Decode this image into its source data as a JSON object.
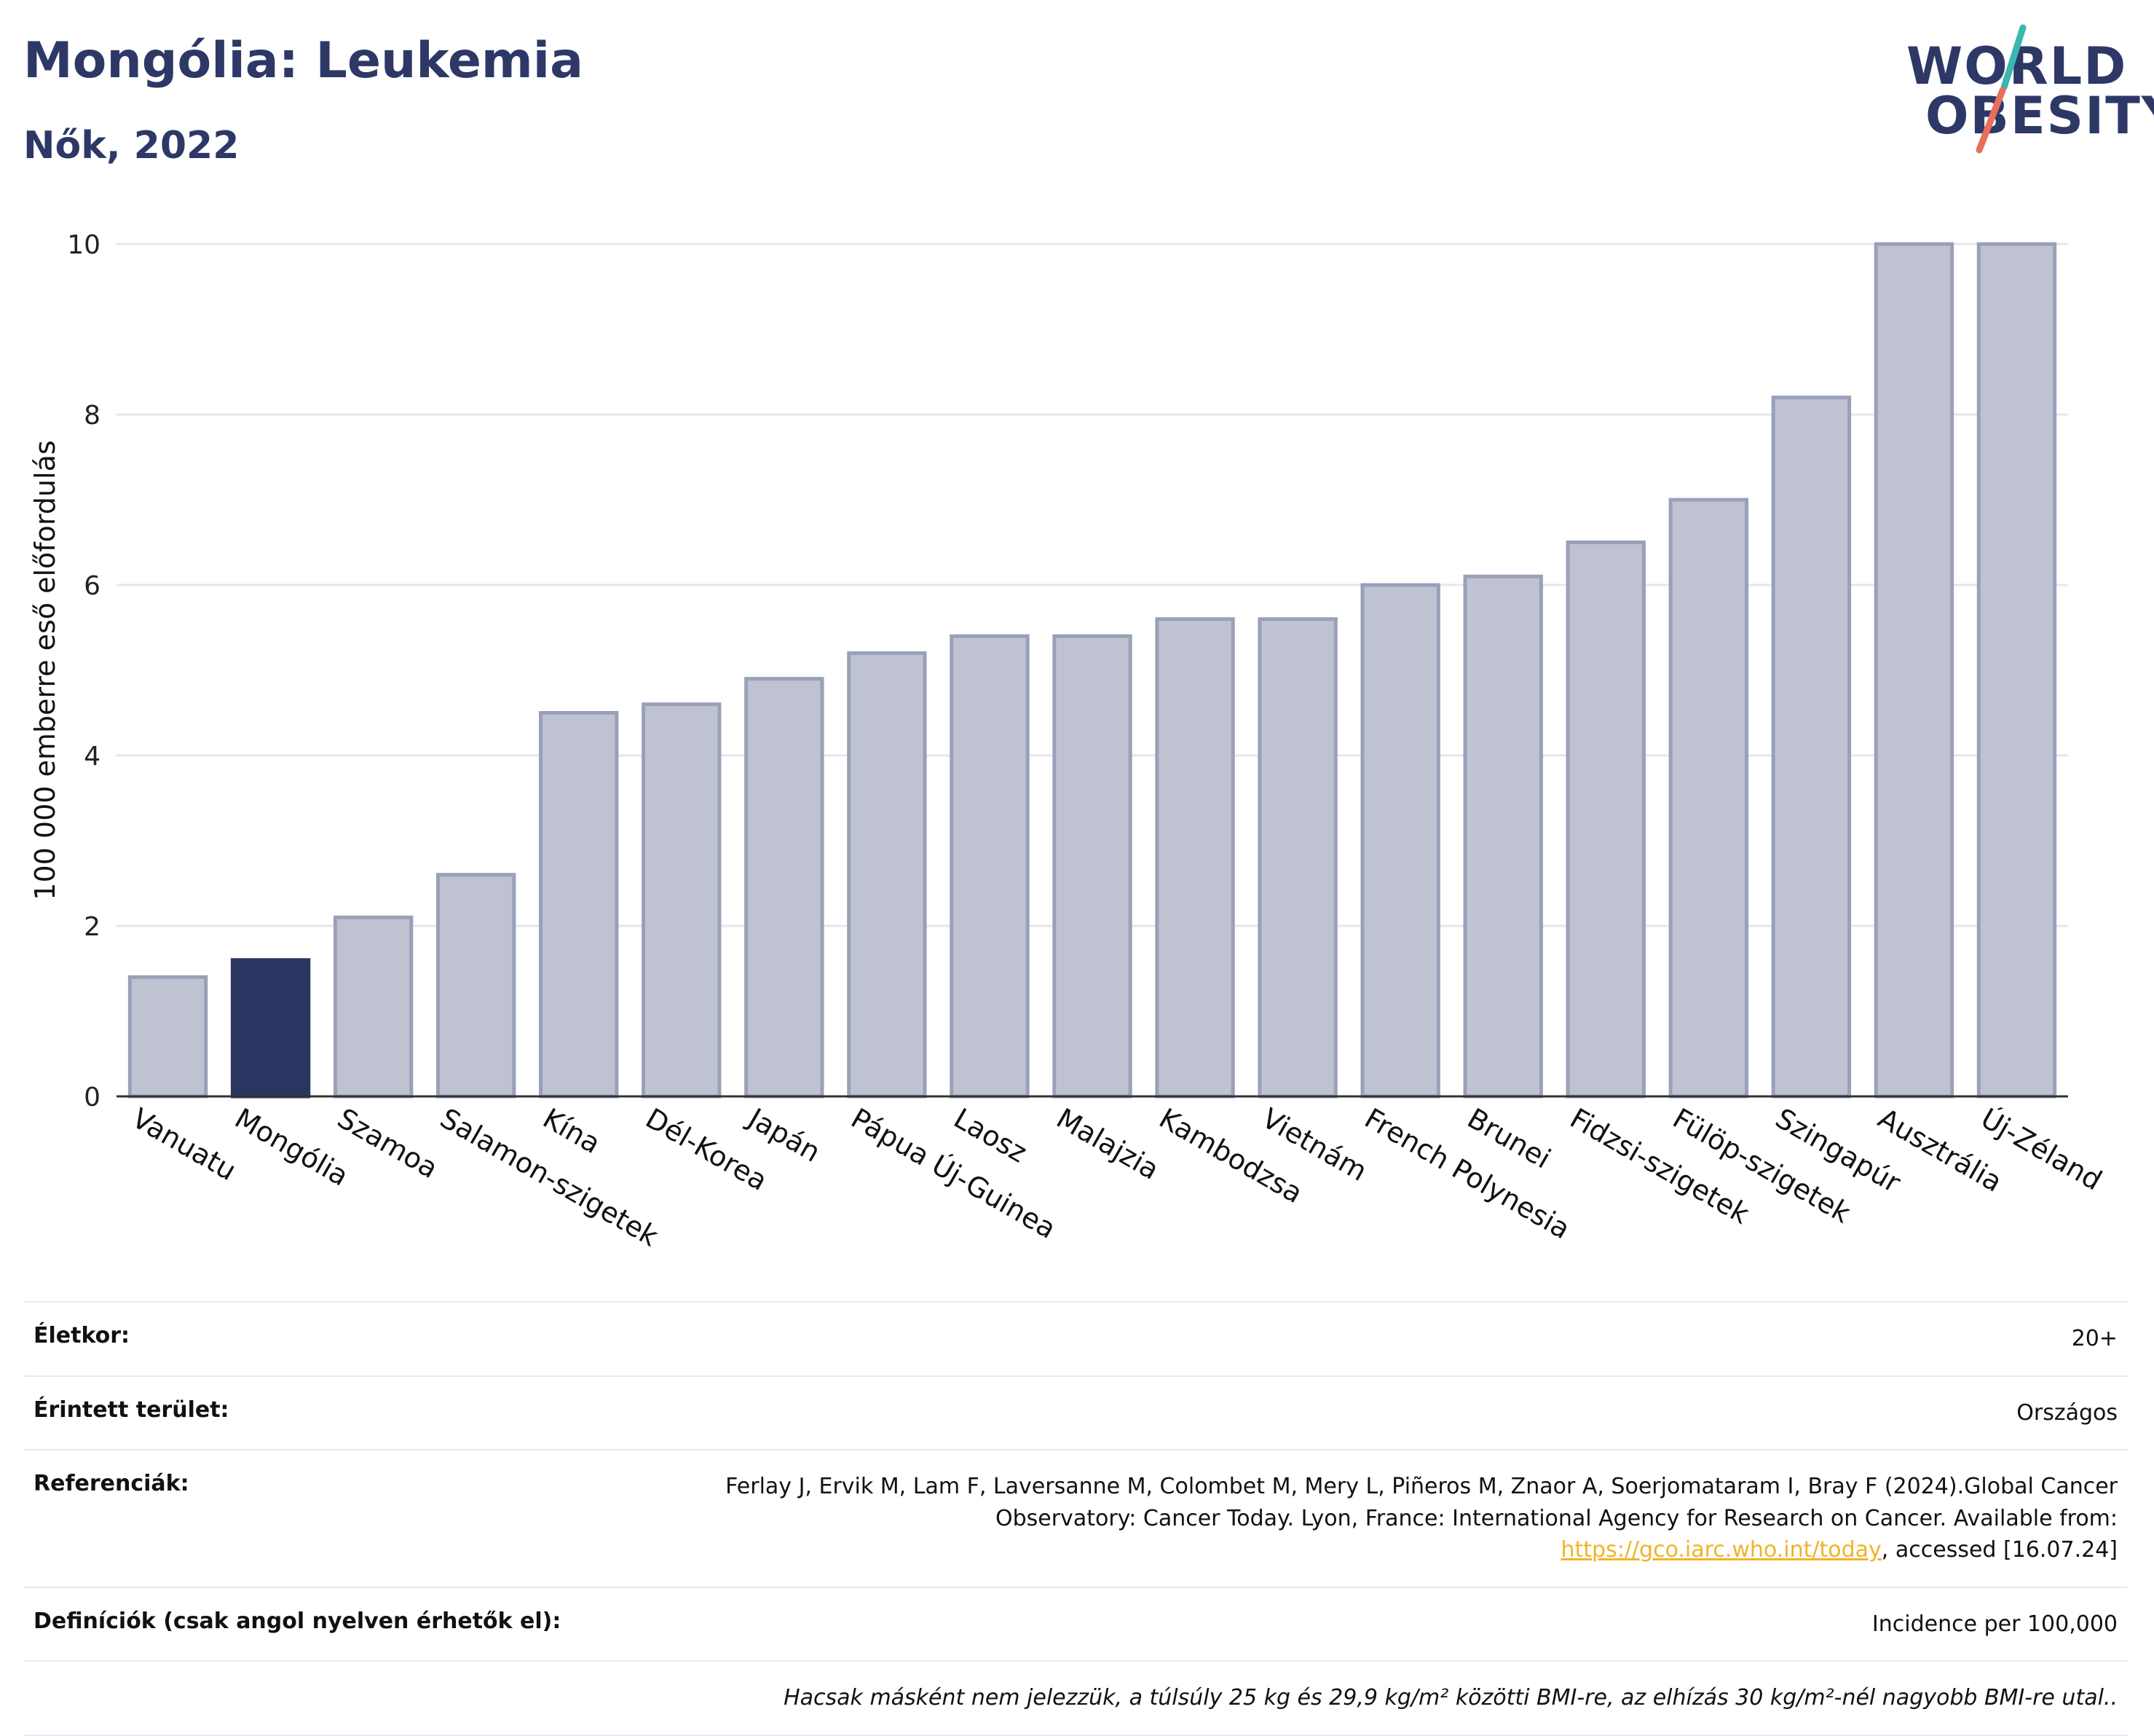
{
  "header": {
    "title": "Mongólia: Leukemia",
    "subtitle": "Nők, 2022"
  },
  "logo": {
    "line1": "WORLD",
    "line2": "OBESITY",
    "accent_teal": "#3cb6b0",
    "accent_coral": "#e8705a"
  },
  "colors": {
    "bar": "#bfc3d1",
    "bar_border": "#9aa0b8",
    "highlight": "#2b3561",
    "grid": "#e6e6ee",
    "text_dark": "#2d3866"
  },
  "chart_data": {
    "type": "bar",
    "ylabel": "100 000 emberre eső előfordulás",
    "ylim": [
      0,
      10
    ],
    "yticks": [
      0,
      2,
      4,
      6,
      8,
      10
    ],
    "grid": true,
    "categories": [
      "Vanuatu",
      "Mongólia",
      "Szamoa",
      "Salamon-szigetek",
      "Kína",
      "Dél-Korea",
      "Japán",
      "Pápua Új-Guinea",
      "Laosz",
      "Malajzia",
      "Kambodzsa",
      "Vietnám",
      "French Polynesia",
      "Brunei",
      "Fidzsi-szigetek",
      "Fülöp-szigetek",
      "Szingapúr",
      "Ausztrália",
      "Új-Zéland"
    ],
    "values": [
      1.4,
      1.6,
      2.1,
      2.6,
      4.5,
      4.6,
      4.9,
      5.2,
      5.4,
      5.4,
      5.6,
      5.6,
      6.0,
      6.1,
      6.5,
      7.0,
      8.2,
      10.0,
      10.0
    ],
    "highlight": "Mongólia"
  },
  "info": {
    "age_label": "Életkor:",
    "age_value": "20+",
    "area_label": "Érintett terület:",
    "area_value": "Országos",
    "ref_label": "Referenciák:",
    "ref_text_1": "Ferlay J, Ervik M, Lam F, Laversanne M, Colombet M, Mery L, Piñeros M, Znaor A, Soerjomataram I, Bray F (2024).Global Cancer Observatory: Cancer Today. Lyon, France: International Agency for Research on Cancer. Available from: ",
    "ref_link": "https://gco.iarc.who.int/today",
    "ref_text_2": ", accessed [16.07.24]",
    "def_label": "Definíciók (csak angol nyelven érhetők el):",
    "def_value": "Incidence per 100,000",
    "note": "Hacsak másként nem jelezzük, a túlsúly 25 kg és 29,9 kg/m² közötti BMI-re, az elhízás 30 kg/m²-nél nagyobb BMI-re utal.."
  }
}
